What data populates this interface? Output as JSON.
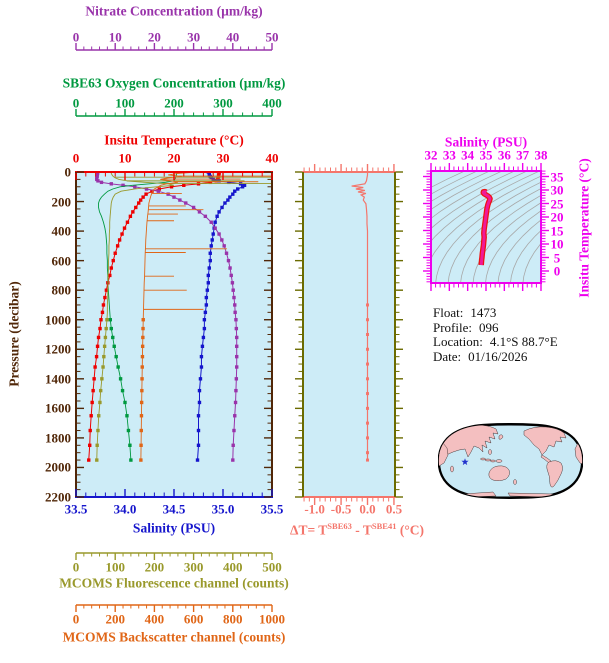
{
  "info": {
    "lines": [
      {
        "label": "Float:",
        "value": "1473"
      },
      {
        "label": "Profile:",
        "value": "096"
      },
      {
        "label": "Location:",
        "value": "4.1°S 88.7°E"
      },
      {
        "label": "Date:",
        "value": "01/16/2026"
      }
    ]
  },
  "colors": {
    "background": "#ffffff",
    "panel_background": "#cdecf7",
    "pressure_axis": "#512708",
    "temperature": "#ee0000",
    "salinity": "#1515cc",
    "nitrate": "#9933aa",
    "oxygen": "#009940",
    "fluorescence": "#99992b",
    "backscatter": "#e06617",
    "delta_t": "#f4756b",
    "ts_axes": "#ee00ee",
    "ts_track": "#f01898",
    "ts_track_fringe": "#ee1111",
    "isopycnals": "#a8a8a8",
    "info_text": "#111111"
  },
  "map": {
    "land_color": "#f4bfc0",
    "ocean_color": "#c9e9f5",
    "outline_color": "#000000",
    "star_color": "#2233cc"
  },
  "chart_data": [
    {
      "id": "depth-profiles",
      "type": "line",
      "orientation": "vertical-depth",
      "grid": false,
      "y_axis": {
        "label": "Pressure (decibar)",
        "lim": [
          0,
          2200
        ],
        "minor_step": 50,
        "color": "#512708",
        "ticks": [
          "0",
          "200",
          "400",
          "600",
          "800",
          "1000",
          "1200",
          "1400",
          "1600",
          "1800",
          "2000",
          "2200"
        ]
      },
      "x_axes": {
        "nitrate": {
          "label": "Nitrate Concentration (µm/kg)",
          "lim": [
            0,
            50
          ],
          "ticks": [
            "0",
            "10",
            "20",
            "30",
            "40",
            "50"
          ],
          "minor_step": 2,
          "color": "#9933aa"
        },
        "oxygen": {
          "label": "SBE63 Oxygen Concentration (µm/kg)",
          "lim": [
            0,
            400
          ],
          "ticks": [
            "0",
            "100",
            "200",
            "300",
            "400"
          ],
          "minor_step": 20,
          "color": "#009940"
        },
        "temperature": {
          "label": "Insitu Temperature (°C)",
          "lim": [
            0,
            40
          ],
          "ticks": [
            "0",
            "10",
            "20",
            "30",
            "40"
          ],
          "minor_step": 2,
          "color": "#ee0000"
        },
        "salinity": {
          "label": "Salinity (PSU)",
          "lim": [
            33.5,
            35.5
          ],
          "ticks": [
            "33.5",
            "34.0",
            "34.5",
            "35.0",
            "35.5"
          ],
          "minor_step": 0.1,
          "color": "#1515cc"
        },
        "fluorescence": {
          "label": "MCOMS Fluorescence channel (counts)",
          "lim": [
            0,
            500
          ],
          "ticks": [
            "0",
            "100",
            "200",
            "300",
            "400",
            "500"
          ],
          "minor_step": 20,
          "color": "#99992b"
        },
        "backscatter": {
          "label": "MCOMS Backscatter channel (counts)",
          "lim": [
            0,
            1000
          ],
          "ticks": [
            "0",
            "200",
            "400",
            "600",
            "800",
            "1000"
          ],
          "minor_step": 40,
          "color": "#e06617"
        }
      },
      "pressure": [
        0,
        10,
        20,
        30,
        40,
        50,
        60,
        70,
        80,
        90,
        100,
        115,
        130,
        150,
        170,
        190,
        210,
        240,
        270,
        300,
        340,
        380,
        420,
        460,
        500,
        550,
        600,
        650,
        700,
        750,
        800,
        850,
        900,
        950,
        1000,
        1060,
        1120,
        1180,
        1250,
        1320,
        1400,
        1480,
        1560,
        1650,
        1750,
        1850,
        1950
      ],
      "series": [
        {
          "name": "insitu-temperature",
          "axis": "temperature",
          "color": "#ee0000",
          "marker": "square",
          "markers": "all",
          "values": [
            29.2,
            29.2,
            29.1,
            29.1,
            29.0,
            28.9,
            28.6,
            27.4,
            25.0,
            22.0,
            19.5,
            17.0,
            15.5,
            14.3,
            13.7,
            13.2,
            12.8,
            12.2,
            11.6,
            11.1,
            10.5,
            9.9,
            9.4,
            8.9,
            8.5,
            8.0,
            7.6,
            7.2,
            6.9,
            6.5,
            6.2,
            5.9,
            5.6,
            5.4,
            5.1,
            4.9,
            4.6,
            4.4,
            4.2,
            3.9,
            3.7,
            3.5,
            3.3,
            3.1,
            2.9,
            2.8,
            2.6
          ]
        },
        {
          "name": "salinity",
          "axis": "salinity",
          "color": "#1515cc",
          "marker": "square",
          "markers": "all",
          "values": [
            34.85,
            34.86,
            34.86,
            34.87,
            34.88,
            34.9,
            34.96,
            35.06,
            35.18,
            35.22,
            35.2,
            35.15,
            35.12,
            35.1,
            35.07,
            35.05,
            35.02,
            34.99,
            34.96,
            34.94,
            34.92,
            34.91,
            34.9,
            34.89,
            34.88,
            34.87,
            34.87,
            34.86,
            34.85,
            34.85,
            34.84,
            34.83,
            34.83,
            34.82,
            34.81,
            34.81,
            34.8,
            34.79,
            34.78,
            34.78,
            34.77,
            34.76,
            34.76,
            34.75,
            34.75,
            34.75,
            34.74
          ]
        },
        {
          "name": "nitrate",
          "axis": "nitrate",
          "color": "#9933aa",
          "marker": "square",
          "markers": "all",
          "values": [
            5.5,
            5.5,
            5.4,
            5.4,
            5.3,
            5.3,
            5.6,
            6.5,
            9.0,
            12.0,
            15.0,
            18.0,
            21.0,
            23.5,
            25.0,
            26.5,
            28.0,
            30.0,
            31.5,
            33.0,
            34.5,
            35.5,
            36.5,
            37.2,
            37.8,
            38.4,
            38.9,
            39.3,
            39.6,
            39.9,
            40.1,
            40.3,
            40.5,
            40.6,
            40.8,
            40.9,
            41.0,
            41.0,
            41.0,
            41.0,
            40.9,
            40.8,
            40.7,
            40.5,
            40.3,
            40.1,
            40.0
          ]
        },
        {
          "name": "sbe63-oxygen",
          "axis": "oxygen",
          "color": "#009940",
          "marker": "square",
          "markers": "deep",
          "values": [
            205,
            205,
            205,
            204,
            203,
            202,
            199,
            183,
            150,
            115,
            90,
            75,
            65,
            58,
            52,
            48,
            46,
            46,
            48,
            52,
            56,
            59,
            61,
            62,
            63,
            63,
            64,
            64,
            65,
            65,
            66,
            67,
            68,
            69,
            70,
            72,
            75,
            78,
            82,
            86,
            91,
            95,
            100,
            104,
            107,
            110,
            112
          ]
        },
        {
          "name": "mcoms-fluorescence",
          "axis": "fluorescence",
          "color": "#99992b",
          "marker": "square",
          "markers": "deep",
          "values": [
            90,
            90,
            92,
            95,
            100,
            110,
            130,
            175,
            235,
            250,
            205,
            150,
            115,
            100,
            95,
            92,
            90,
            89,
            88,
            87,
            86,
            86,
            85,
            85,
            84,
            84,
            83,
            83,
            82,
            82,
            81,
            81,
            80,
            80,
            79,
            77,
            75,
            73,
            71,
            69,
            66,
            63,
            61,
            58,
            56,
            54,
            53
          ],
          "spikes": [
            {
              "p": 35,
              "v": 500
            },
            {
              "p": 60,
              "v": 430
            },
            {
              "p": 78,
              "v": 500
            }
          ]
        },
        {
          "name": "mcoms-backscatter",
          "axis": "backscatter",
          "color": "#e06617",
          "marker": "square",
          "markers": "deep",
          "values": [
            620,
            520,
            470,
            540,
            465,
            430,
            485,
            520,
            462,
            432,
            420,
            400,
            390,
            385,
            380,
            376,
            372,
            370,
            368,
            365,
            362,
            360,
            358,
            356,
            355,
            353,
            352,
            351,
            350,
            348,
            347,
            346,
            345,
            344,
            343,
            342,
            341,
            340,
            339,
            338,
            337,
            336,
            335,
            334,
            333,
            332,
            331
          ],
          "spikes": [
            {
              "p": 28,
              "v": 1000
            },
            {
              "p": 48,
              "v": 840
            },
            {
              "p": 66,
              "v": 930
            },
            {
              "p": 145,
              "v": 540
            },
            {
              "p": 230,
              "v": 560
            },
            {
              "p": 255,
              "v": 650
            },
            {
              "p": 285,
              "v": 520
            },
            {
              "p": 330,
              "v": 500
            },
            {
              "p": 520,
              "v": 770
            },
            {
              "p": 545,
              "v": 560
            },
            {
              "p": 705,
              "v": 500
            },
            {
              "p": 800,
              "v": 565
            },
            {
              "p": 930,
              "v": 650
            }
          ]
        }
      ]
    },
    {
      "id": "delta-t-profile",
      "type": "line",
      "x_axis": {
        "label_parts": {
          "pre": "ΔT= T",
          "sup1": "SBE63",
          "mid": " - T",
          "sup2": "SBE41",
          "post": " (°C)"
        },
        "label_plain": "ΔT = T(SBE63) - T(SBE41) (°C)",
        "lim": [
          -1.22,
          0.52
        ],
        "ticks": [
          "-1.0",
          "-0.5",
          "0.0",
          "0.5"
        ],
        "minor_step": 0.1,
        "color": "#f4756b"
      },
      "y_axis": {
        "label": "Pressure (decibar)",
        "lim": [
          0,
          2200
        ],
        "minor_step": 50,
        "color": "#6b6b00"
      },
      "pressure": [
        0,
        20,
        40,
        60,
        80,
        95,
        105,
        115,
        125,
        135,
        145,
        155,
        170,
        190,
        215,
        250,
        300,
        350,
        400,
        500,
        600,
        700,
        800,
        900,
        1000,
        1100,
        1200,
        1300,
        1400,
        1500,
        1600,
        1700,
        1800,
        1900,
        1950
      ],
      "values": [
        0.0,
        0.0,
        -0.01,
        -0.02,
        -0.05,
        -0.3,
        -0.08,
        -0.22,
        -0.05,
        -0.18,
        -0.03,
        -0.12,
        -0.06,
        -0.08,
        -0.03,
        -0.02,
        -0.01,
        -0.01,
        0.0,
        0.0,
        0.0,
        0.0,
        0.0,
        0.0,
        0.0,
        0.0,
        0.0,
        0.0,
        0.0,
        0.0,
        0.0,
        0.0,
        0.0,
        0.0,
        0.0
      ]
    },
    {
      "id": "ts-diagram",
      "type": "line",
      "x_axis": {
        "label": "Salinity (PSU)",
        "lim": [
          32,
          38
        ],
        "ticks": [
          "32",
          "33",
          "34",
          "35",
          "36",
          "37",
          "38"
        ],
        "minor_step": 0.25,
        "color": "#ee00ee"
      },
      "y_axis": {
        "label": "Insitu Temperature (°C)",
        "lim": [
          -4.4,
          37.0
        ],
        "ticks": [
          "0",
          "5",
          "10",
          "15",
          "20",
          "25",
          "30",
          "35"
        ],
        "minor_step": 1,
        "color": "#ee00ee"
      },
      "background_contours": "potential density isopycnals (gray, unlabeled)",
      "track": {
        "salinity": [
          34.74,
          34.75,
          34.76,
          34.78,
          34.8,
          34.83,
          34.86,
          34.88,
          34.9,
          34.88,
          34.9,
          34.93,
          34.96,
          34.99,
          35.02,
          35.05,
          35.1,
          35.15,
          35.2,
          35.22,
          35.18,
          35.1,
          35.0,
          34.9,
          34.85,
          34.86,
          34.95,
          35.02
        ],
        "temperature": [
          2.2,
          3.0,
          4.0,
          5.0,
          6.5,
          8.0,
          9.5,
          11.0,
          12.5,
          14.0,
          15.5,
          17.0,
          18.5,
          20.0,
          21.5,
          23.0,
          24.5,
          25.5,
          26.3,
          26.8,
          27.3,
          27.8,
          28.2,
          28.6,
          29.0,
          29.3,
          29.4,
          29.2
        ]
      }
    }
  ]
}
